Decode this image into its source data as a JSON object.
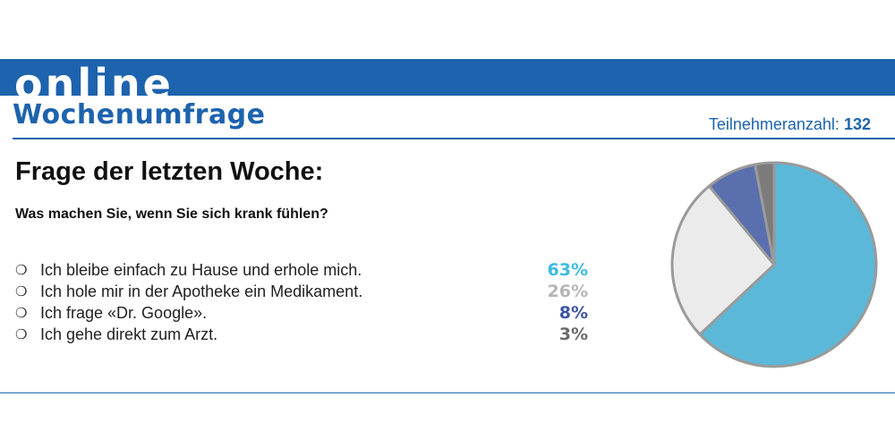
{
  "header": {
    "banner_word": "online",
    "subtitle": "Wochenumfrage",
    "participants_label": "Teilnehmeranzahl:",
    "participants_count": "132"
  },
  "question": {
    "title": "Frage der letzten Woche:",
    "text": "Was machen Sie, wenn Sie sich krank fühlen?"
  },
  "answers": [
    {
      "label": "Ich bleibe einfach zu Hause und erhole mich.",
      "percent": "63%",
      "color": "#3cbbe0"
    },
    {
      "label": "Ich hole mir in der Apotheke ein Medikament.",
      "percent": "26%",
      "color": "#b6b6b6"
    },
    {
      "label": "Ich frage «Dr. Google».",
      "percent": "8%",
      "color": "#3d55a3"
    },
    {
      "label": "Ich gehe direkt zum Arzt.",
      "percent": "3%",
      "color": "#6a6a6a"
    }
  ],
  "colors": {
    "brand_blue": "#1d63ad",
    "slice_colors": [
      "#5bb8d9",
      "#ebebeb",
      "#5a6fae",
      "#7b7b7b"
    ],
    "slice_outline": "#9a9a9a"
  },
  "chart_data": {
    "type": "pie",
    "categories": [
      "Ich bleibe einfach zu Hause und erhole mich.",
      "Ich hole mir in der Apotheke ein Medikament.",
      "Ich frage «Dr. Google».",
      "Ich gehe direkt zum Arzt."
    ],
    "values": [
      63,
      26,
      8,
      3
    ],
    "unit": "%"
  }
}
